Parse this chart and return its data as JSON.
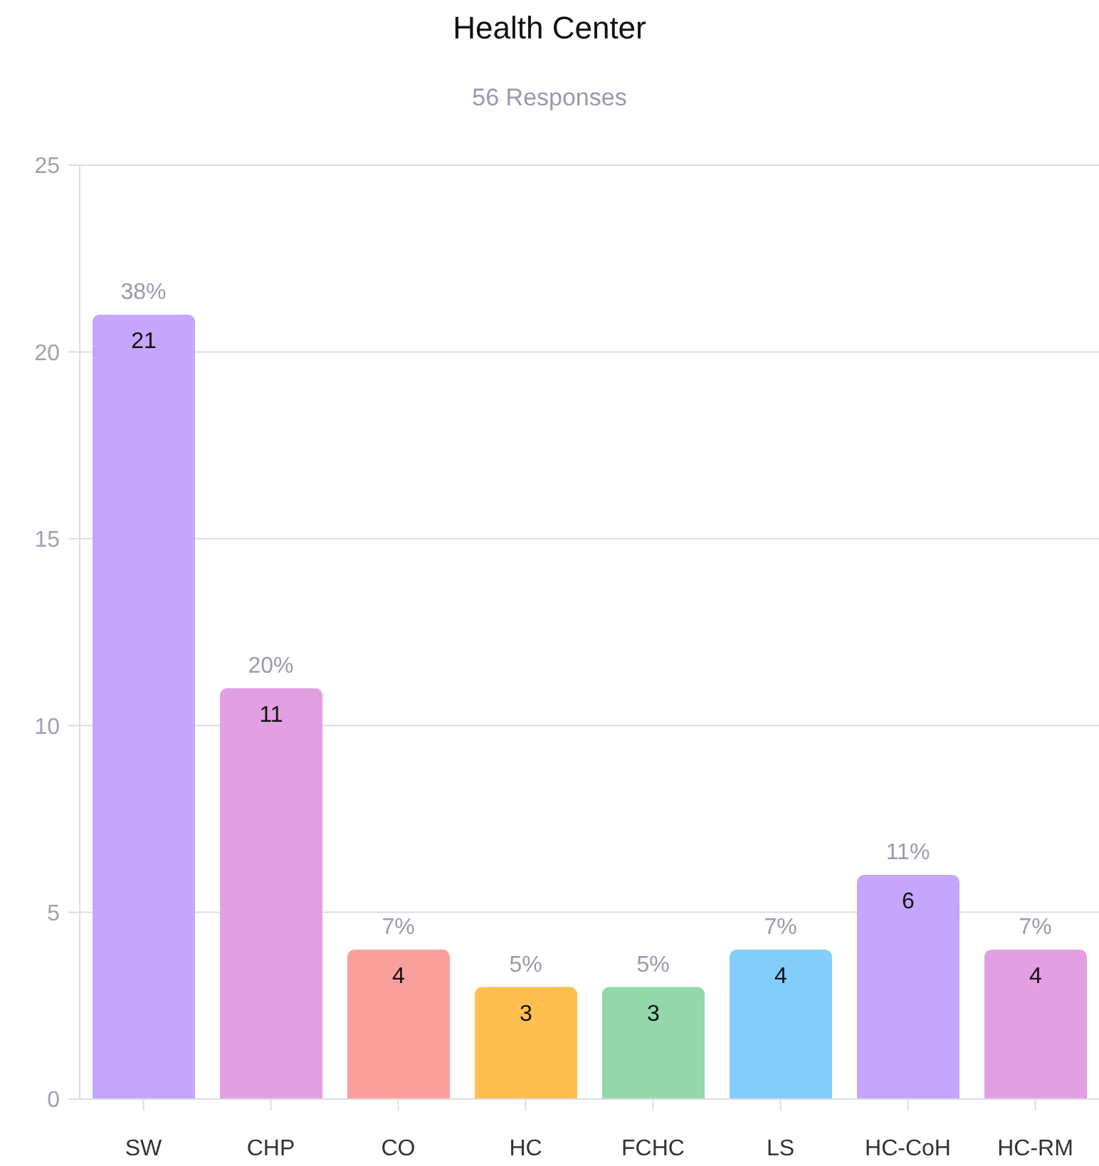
{
  "chart_data": {
    "type": "bar",
    "title": "Health Center",
    "subtitle": "56 Responses",
    "categories": [
      "SW",
      "CHP",
      "CO",
      "HC",
      "FCHC",
      "LS",
      "HC-CoH",
      "HC-RM"
    ],
    "values": [
      21,
      11,
      4,
      3,
      3,
      4,
      6,
      4
    ],
    "colors": [
      "#c5a6fc",
      "#e2a0e2",
      "#f9a09d",
      "#ffc04f",
      "#93d7aa",
      "#82cdf9",
      "#c5a6fc",
      "#e2a0e2"
    ],
    "ylim": [
      0,
      25
    ],
    "yticks": [
      0,
      5,
      10,
      15,
      20,
      25
    ],
    "grid": "y",
    "data_labels": true,
    "annotations": [
      {
        "text": "38%",
        "x": "SW",
        "y": 21
      },
      {
        "text": "20%",
        "x": "CHP",
        "y": 11
      },
      {
        "text": "7%",
        "x": "CO",
        "y": 4
      },
      {
        "text": "5%",
        "x": "HC",
        "y": 3
      },
      {
        "text": "5%",
        "x": "FCHC",
        "y": 3
      },
      {
        "text": "7%",
        "x": "LS",
        "y": 4
      },
      {
        "text": "11%",
        "x": "HC-CoH",
        "y": 6
      },
      {
        "text": "7%",
        "x": "HC-RM",
        "y": 4
      }
    ]
  }
}
